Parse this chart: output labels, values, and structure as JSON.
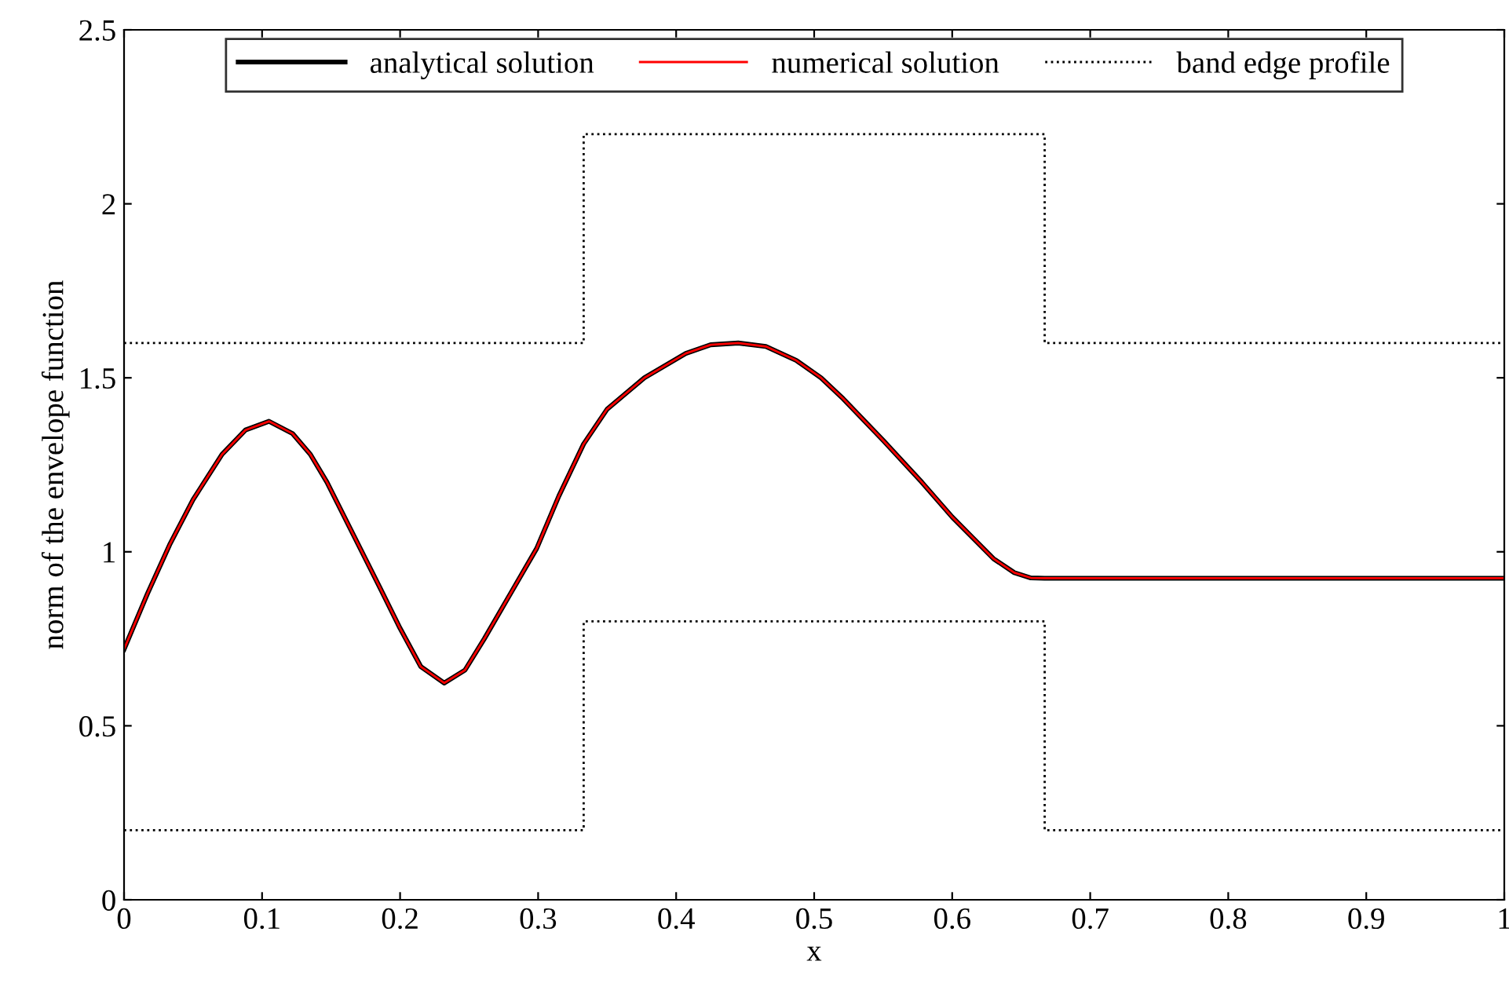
{
  "chart_data": {
    "type": "line",
    "xlabel": "x",
    "ylabel": "norm of the envelope function",
    "xlim": [
      0,
      1
    ],
    "ylim": [
      0,
      2.5
    ],
    "xticks": [
      0,
      0.1,
      0.2,
      0.3,
      0.4,
      0.5,
      0.6,
      0.7,
      0.8,
      0.9,
      1
    ],
    "yticks": [
      0,
      0.5,
      1,
      1.5,
      2,
      2.5
    ],
    "grid": false,
    "legend": "top",
    "marker": "none",
    "x": [
      0,
      0.017,
      0.033,
      0.05,
      0.071,
      0.088,
      0.105,
      0.122,
      0.135,
      0.147,
      0.166,
      0.185,
      0.2,
      0.215,
      0.232,
      0.247,
      0.261,
      0.28,
      0.299,
      0.315,
      0.333,
      0.35,
      0.377,
      0.407,
      0.425,
      0.445,
      0.465,
      0.487,
      0.505,
      0.521,
      0.55,
      0.578,
      0.6,
      0.615,
      0.63,
      0.645,
      0.657,
      0.667,
      1
    ],
    "series": [
      {
        "name": "analytical solution",
        "color": "#000000",
        "line_style": "solid",
        "values": [
          0.72,
          0.88,
          1.02,
          1.15,
          1.28,
          1.35,
          1.375,
          1.34,
          1.28,
          1.2,
          1.05,
          0.9,
          0.78,
          0.67,
          0.623,
          0.66,
          0.75,
          0.88,
          1.01,
          1.16,
          1.31,
          1.41,
          1.5,
          1.57,
          1.595,
          1.6,
          1.59,
          1.55,
          1.5,
          1.44,
          1.32,
          1.2,
          1.1,
          1.04,
          0.98,
          0.94,
          0.925,
          0.924,
          0.924
        ]
      },
      {
        "name": "numerical solution",
        "color": "#ff0000",
        "line_style": "solid",
        "values": [
          0.72,
          0.88,
          1.02,
          1.15,
          1.28,
          1.35,
          1.375,
          1.34,
          1.28,
          1.2,
          1.05,
          0.9,
          0.78,
          0.67,
          0.623,
          0.66,
          0.75,
          0.88,
          1.01,
          1.16,
          1.31,
          1.41,
          1.5,
          1.57,
          1.595,
          1.6,
          1.59,
          1.55,
          1.5,
          1.44,
          1.32,
          1.2,
          1.1,
          1.04,
          0.98,
          0.94,
          0.925,
          0.924,
          0.924
        ]
      },
      {
        "name": "band edge profile",
        "type": "step",
        "color": "#000000",
        "line_style": "dotted",
        "x": [
          0,
          0.333,
          0.667,
          1
        ],
        "values": [
          1.6,
          2.2,
          1.6,
          1.6
        ]
      },
      {
        "type": "step",
        "color": "#000000",
        "line_style": "dotted",
        "x": [
          0,
          0.333,
          0.667,
          1
        ],
        "values": [
          0.2,
          0.8,
          0.2,
          0.2
        ]
      }
    ]
  }
}
